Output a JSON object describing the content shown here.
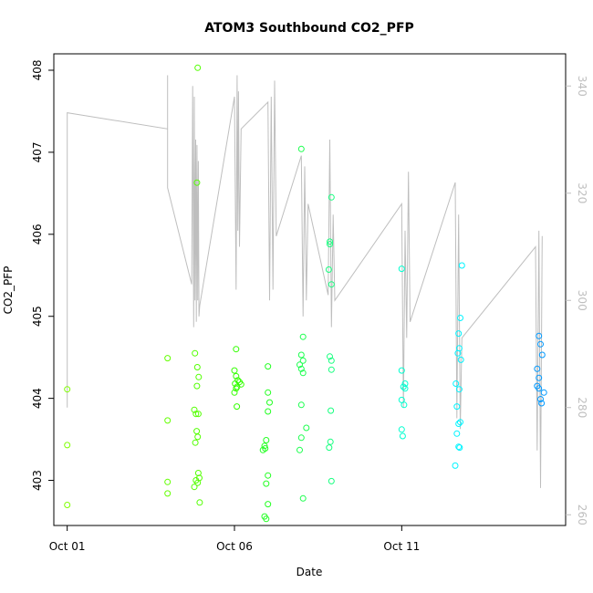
{
  "chart_data": {
    "type": "scatter",
    "title": "ATOM3 Southbound CO2_PFP",
    "xlabel": "Date",
    "ylabel": "CO2_PFP",
    "x_ticks": [
      "Oct 01",
      "Oct 06",
      "Oct 11"
    ],
    "x_range": [
      -0.4,
      14.9
    ],
    "ylim": [
      402.45,
      408.2
    ],
    "y_ticks": [
      403,
      404,
      405,
      406,
      407,
      408
    ],
    "y2_ticks": [
      260,
      280,
      300,
      320,
      340
    ],
    "y2lim": [
      258,
      346
    ],
    "grid": false,
    "legend": "none",
    "colors": {
      "points": "point color gradient from yellow-green to blue over time",
      "line": "#bebebe"
    },
    "series": [
      {
        "points": [
          [
            0.0,
            402.7,
            "#7fff00"
          ],
          [
            0.0,
            403.43,
            "#7fff00"
          ],
          [
            0.0,
            404.11,
            "#7fff00"
          ],
          [
            3.0,
            402.98,
            "#62ff00"
          ],
          [
            3.0,
            402.84,
            "#62ff00"
          ],
          [
            3.0,
            403.73,
            "#62ff00"
          ],
          [
            3.0,
            404.49,
            "#62ff00"
          ],
          [
            3.8,
            402.92,
            "#52ff00"
          ],
          [
            3.85,
            403.0,
            "#52ff00"
          ],
          [
            3.9,
            402.97,
            "#52ff00"
          ],
          [
            3.95,
            403.03,
            "#52ff00"
          ],
          [
            3.92,
            403.09,
            "#52ff00"
          ],
          [
            3.96,
            402.73,
            "#52ff00"
          ],
          [
            3.8,
            403.86,
            "#52ff00"
          ],
          [
            3.85,
            403.81,
            "#52ff00"
          ],
          [
            3.92,
            403.81,
            "#52ff00"
          ],
          [
            3.87,
            403.6,
            "#52ff00"
          ],
          [
            3.9,
            403.53,
            "#52ff00"
          ],
          [
            3.83,
            403.46,
            "#52ff00"
          ],
          [
            3.82,
            404.55,
            "#52ff00"
          ],
          [
            3.89,
            404.38,
            "#52ff00"
          ],
          [
            3.93,
            404.26,
            "#52ff00"
          ],
          [
            3.88,
            404.15,
            "#52ff00"
          ],
          [
            3.88,
            406.63,
            "#52ff00"
          ],
          [
            3.9,
            408.03,
            "#52ff00"
          ],
          [
            5.05,
            404.6,
            "#33ff00"
          ],
          [
            5.0,
            404.34,
            "#33ff00"
          ],
          [
            5.05,
            404.27,
            "#33ff00"
          ],
          [
            5.1,
            404.22,
            "#33ff00"
          ],
          [
            5.02,
            404.18,
            "#33ff00"
          ],
          [
            5.08,
            404.14,
            "#33ff00"
          ],
          [
            5.15,
            404.2,
            "#33ff00"
          ],
          [
            5.2,
            404.17,
            "#33ff00"
          ],
          [
            5.05,
            404.12,
            "#33ff00"
          ],
          [
            5.0,
            404.07,
            "#33ff00"
          ],
          [
            5.07,
            403.9,
            "#33ff00"
          ],
          [
            6.0,
            404.39,
            "#23ff22"
          ],
          [
            6.0,
            404.07,
            "#23ff22"
          ],
          [
            6.05,
            403.95,
            "#23ff22"
          ],
          [
            6.0,
            403.84,
            "#23ff22"
          ],
          [
            5.95,
            403.49,
            "#23ff22"
          ],
          [
            5.9,
            403.42,
            "#23ff22"
          ],
          [
            5.85,
            403.37,
            "#23ff22"
          ],
          [
            5.92,
            403.39,
            "#23ff22"
          ],
          [
            6.0,
            403.06,
            "#23ff22"
          ],
          [
            5.95,
            402.96,
            "#23ff22"
          ],
          [
            6.0,
            402.71,
            "#23ff22"
          ],
          [
            5.9,
            402.56,
            "#23ff22"
          ],
          [
            5.95,
            402.53,
            "#23ff22"
          ],
          [
            7.0,
            407.04,
            "#1aff4d"
          ],
          [
            7.0,
            404.53,
            "#1aff4d"
          ],
          [
            7.05,
            404.46,
            "#1aff4d"
          ],
          [
            6.95,
            404.41,
            "#1aff4d"
          ],
          [
            7.0,
            404.36,
            "#1aff4d"
          ],
          [
            7.05,
            404.75,
            "#1aff4d"
          ],
          [
            7.05,
            404.31,
            "#1aff4d"
          ],
          [
            7.0,
            403.92,
            "#1aff4d"
          ],
          [
            7.15,
            403.64,
            "#1aff4d"
          ],
          [
            7.0,
            403.52,
            "#1aff4d"
          ],
          [
            6.95,
            403.37,
            "#1aff4d"
          ],
          [
            7.05,
            402.78,
            "#1aff4d"
          ],
          [
            7.9,
            406.45,
            "#17ff7f"
          ],
          [
            7.85,
            405.88,
            "#17ff7f"
          ],
          [
            7.85,
            405.91,
            "#17ff7f"
          ],
          [
            7.82,
            405.57,
            "#17ff7f"
          ],
          [
            7.9,
            405.39,
            "#17ff7f"
          ],
          [
            7.85,
            404.51,
            "#17ff7f"
          ],
          [
            7.9,
            404.46,
            "#17ff7f"
          ],
          [
            7.9,
            404.35,
            "#17ff7f"
          ],
          [
            7.88,
            403.85,
            "#17ff7f"
          ],
          [
            7.87,
            403.47,
            "#17ff7f"
          ],
          [
            7.83,
            403.4,
            "#17ff7f"
          ],
          [
            7.9,
            402.99,
            "#17ff7f"
          ],
          [
            10.0,
            405.58,
            "#00ffd0"
          ],
          [
            10.0,
            404.34,
            "#00ffd0"
          ],
          [
            10.1,
            404.18,
            "#00ffd0"
          ],
          [
            10.05,
            404.14,
            "#00ffd0"
          ],
          [
            10.1,
            404.12,
            "#00ffd0"
          ],
          [
            10.0,
            403.98,
            "#00ffd0"
          ],
          [
            10.07,
            403.92,
            "#00ffd0"
          ],
          [
            10.0,
            403.62,
            "#00ffd0"
          ],
          [
            10.03,
            403.54,
            "#00ffd0"
          ],
          [
            11.8,
            405.62,
            "#00f4ff"
          ],
          [
            11.75,
            404.98,
            "#00f4ff"
          ],
          [
            11.7,
            404.79,
            "#00f4ff"
          ],
          [
            11.72,
            404.61,
            "#00f4ff"
          ],
          [
            11.68,
            404.55,
            "#00f4ff"
          ],
          [
            11.77,
            404.47,
            "#00f4ff"
          ],
          [
            11.62,
            404.18,
            "#00f4ff"
          ],
          [
            11.72,
            404.11,
            "#00f4ff"
          ],
          [
            11.65,
            403.9,
            "#00f4ff"
          ],
          [
            11.75,
            403.71,
            "#00f4ff"
          ],
          [
            11.7,
            403.69,
            "#00f4ff"
          ],
          [
            11.65,
            403.57,
            "#00f4ff"
          ],
          [
            11.7,
            403.41,
            "#00f4ff"
          ],
          [
            11.73,
            403.4,
            "#00f4ff"
          ],
          [
            11.6,
            403.18,
            "#00f4ff"
          ],
          [
            14.1,
            404.76,
            "#0099ff"
          ],
          [
            14.15,
            404.66,
            "#0099ff"
          ],
          [
            14.2,
            404.53,
            "#0099ff"
          ],
          [
            14.05,
            404.36,
            "#0099ff"
          ],
          [
            14.1,
            404.25,
            "#0099ff"
          ],
          [
            14.05,
            404.15,
            "#0099ff"
          ],
          [
            14.1,
            404.12,
            "#0099ff"
          ],
          [
            14.25,
            404.07,
            "#0099ff"
          ],
          [
            14.15,
            403.99,
            "#0099ff"
          ],
          [
            14.18,
            403.94,
            "#0099ff"
          ]
        ]
      }
    ],
    "line_series": {
      "axis": "right",
      "points": [
        [
          0.0,
          280
        ],
        [
          0.0,
          335
        ],
        [
          3.0,
          332
        ],
        [
          3.0,
          328
        ],
        [
          3.0,
          342
        ],
        [
          3.0,
          321
        ],
        [
          3.72,
          303
        ],
        [
          3.75,
          340
        ],
        [
          3.78,
          295
        ],
        [
          3.8,
          338
        ],
        [
          3.82,
          300
        ],
        [
          3.84,
          330
        ],
        [
          3.86,
          296
        ],
        [
          3.88,
          329
        ],
        [
          3.9,
          300
        ],
        [
          3.92,
          326
        ],
        [
          3.94,
          297
        ],
        [
          3.96,
          299
        ],
        [
          5.0,
          338
        ],
        [
          5.05,
          302
        ],
        [
          5.08,
          342
        ],
        [
          5.1,
          313
        ],
        [
          5.12,
          339
        ],
        [
          5.15,
          310
        ],
        [
          5.2,
          332
        ],
        [
          6.0,
          337
        ],
        [
          6.05,
          300
        ],
        [
          6.1,
          338
        ],
        [
          6.15,
          302
        ],
        [
          6.2,
          341
        ],
        [
          6.25,
          312
        ],
        [
          7.0,
          327
        ],
        [
          7.05,
          297
        ],
        [
          7.1,
          325
        ],
        [
          7.15,
          300
        ],
        [
          7.2,
          318
        ],
        [
          7.8,
          301
        ],
        [
          7.85,
          330
        ],
        [
          7.9,
          295
        ],
        [
          7.95,
          316
        ],
        [
          8.0,
          300
        ],
        [
          10.0,
          318
        ],
        [
          10.05,
          280
        ],
        [
          10.1,
          313
        ],
        [
          10.15,
          293
        ],
        [
          10.2,
          324
        ],
        [
          10.25,
          296
        ],
        [
          11.6,
          322
        ],
        [
          11.65,
          278
        ],
        [
          11.7,
          316
        ],
        [
          11.75,
          276
        ],
        [
          11.8,
          293
        ],
        [
          14.0,
          310
        ],
        [
          14.05,
          272
        ],
        [
          14.1,
          313
        ],
        [
          14.15,
          265
        ],
        [
          14.2,
          312
        ]
      ]
    }
  }
}
